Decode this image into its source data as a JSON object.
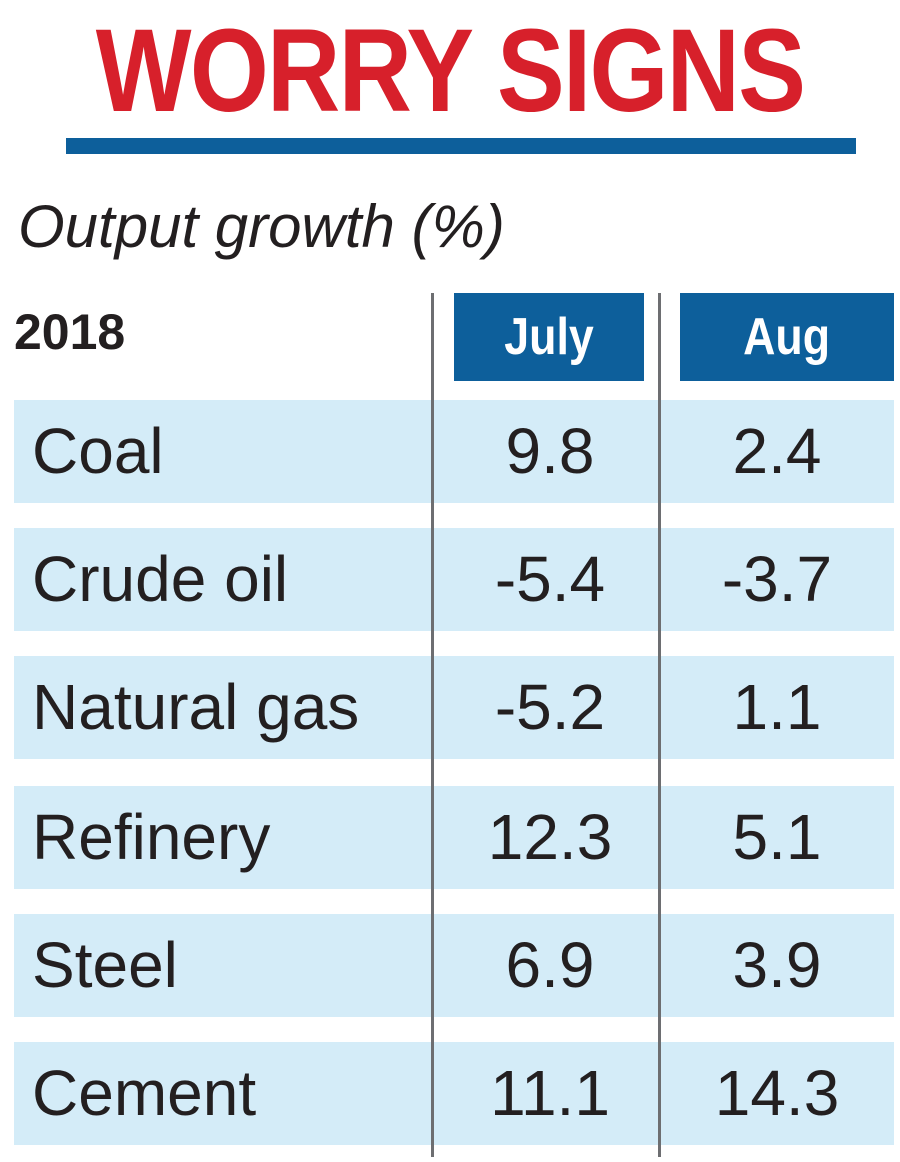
{
  "title": "WORRY SIGNS",
  "subtitle": "Output growth (%)",
  "colors": {
    "title": "#d7202b",
    "accent": "#0d5f9b",
    "row_fill": "#d4ecf8"
  },
  "chart_data": {
    "type": "table",
    "corner_label": "2018",
    "columns": [
      "July",
      "Aug"
    ],
    "rows": [
      {
        "label": "Coal",
        "values": [
          "9.8",
          "2.4"
        ]
      },
      {
        "label": "Crude oil",
        "values": [
          "-5.4",
          "-3.7"
        ]
      },
      {
        "label": "Natural gas",
        "values": [
          "-5.2",
          "1.1"
        ]
      },
      {
        "label": "Refinery",
        "values": [
          "12.3",
          "5.1"
        ]
      },
      {
        "label": "Steel",
        "values": [
          "6.9",
          "3.9"
        ]
      },
      {
        "label": "Cement",
        "values": [
          "11.1",
          "14.3"
        ]
      }
    ]
  }
}
